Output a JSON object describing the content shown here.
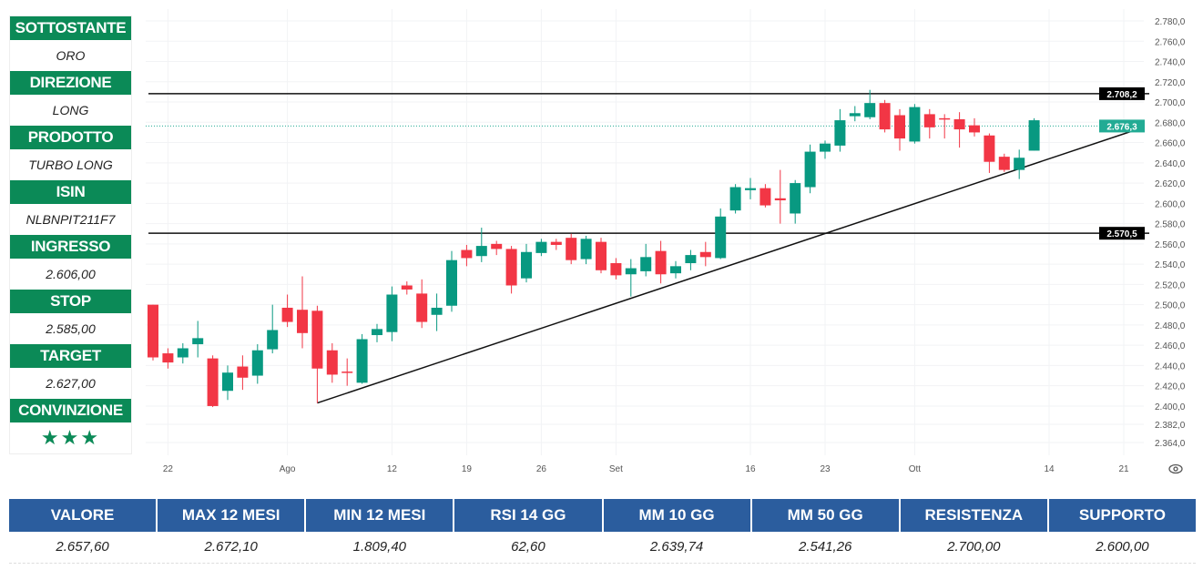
{
  "panel": [
    {
      "label": "SOTTOSTANTE",
      "value": "ORO"
    },
    {
      "label": "DIREZIONE",
      "value": "LONG"
    },
    {
      "label": "PRODOTTO",
      "value": "TURBO LONG"
    },
    {
      "label": "ISIN",
      "value": "NLBNPIT211F7"
    },
    {
      "label": "INGRESSO",
      "value": "2.606,00"
    },
    {
      "label": "STOP",
      "value": "2.585,00"
    },
    {
      "label": "TARGET",
      "value": "2.627,00"
    },
    {
      "label": "CONVINZIONE",
      "value": "★★★"
    }
  ],
  "table": {
    "headers": [
      "VALORE",
      "MAX 12 MESI",
      "MIN 12 MESI",
      "RSI 14 GG",
      "MM 10 GG",
      "MM 50 GG",
      "RESISTENZA",
      "SUPPORTO"
    ],
    "values": [
      "2.657,60",
      "2.672,10",
      "1.809,40",
      "62,60",
      "2.639,74",
      "2.541,26",
      "2.700,00",
      "2.600,00"
    ]
  },
  "chart_data": {
    "type": "candlestick",
    "colors": {
      "up": "#089981",
      "down": "#f23645",
      "line": "#111111",
      "last": "#22ab94"
    },
    "ylim": [
      2364,
      2780
    ],
    "yticks": [
      2780,
      2760,
      2740,
      2720,
      2700,
      2680,
      2660,
      2640,
      2620,
      2600,
      2580,
      2560,
      2540,
      2520,
      2500,
      2480,
      2460,
      2440,
      2420,
      2400,
      2382,
      2364
    ],
    "ytick_labels": [
      "2.780,0",
      "2.760,0",
      "2.740,0",
      "2.720,0",
      "2.700,0",
      "2.680,0",
      "2.660,0",
      "2.640,0",
      "2.620,0",
      "2.600,0",
      "2.580,0",
      "2.560,0",
      "2.540,0",
      "2.520,0",
      "2.500,0",
      "2.480,0",
      "2.460,0",
      "2.440,0",
      "2.420,0",
      "2.400,0",
      "2.382,0",
      "2.364,0"
    ],
    "xticks": [
      {
        "i": 2,
        "label": "22"
      },
      {
        "i": 10,
        "label": "Ago"
      },
      {
        "i": 17,
        "label": "12"
      },
      {
        "i": 22,
        "label": "19"
      },
      {
        "i": 27,
        "label": "26"
      },
      {
        "i": 32,
        "label": "Set"
      },
      {
        "i": 41,
        "label": "16"
      },
      {
        "i": 46,
        "label": "23"
      },
      {
        "i": 52,
        "label": "Ott"
      },
      {
        "i": 61,
        "label": "14"
      },
      {
        "i": 66,
        "label": "21"
      }
    ],
    "ohlc": [
      [
        2500,
        2500,
        2445,
        2448
      ],
      [
        2452,
        2457,
        2437,
        2443
      ],
      [
        2448,
        2462,
        2442,
        2457
      ],
      [
        2461,
        2484,
        2448,
        2467
      ],
      [
        2447,
        2450,
        2399,
        2400
      ],
      [
        2415,
        2440,
        2406,
        2433
      ],
      [
        2439,
        2450,
        2416,
        2428
      ],
      [
        2430,
        2461,
        2422,
        2455
      ],
      [
        2456,
        2500,
        2452,
        2475
      ],
      [
        2497,
        2510,
        2478,
        2483
      ],
      [
        2495,
        2528,
        2457,
        2472
      ],
      [
        2494,
        2499,
        2403,
        2437
      ],
      [
        2455,
        2462,
        2423,
        2431
      ],
      [
        2434,
        2447,
        2420,
        2433
      ],
      [
        2423,
        2471,
        2422,
        2466
      ],
      [
        2470,
        2481,
        2463,
        2476
      ],
      [
        2473,
        2518,
        2464,
        2510
      ],
      [
        2519,
        2523,
        2510,
        2515
      ],
      [
        2511,
        2525,
        2477,
        2483
      ],
      [
        2490,
        2511,
        2474,
        2497
      ],
      [
        2499,
        2553,
        2493,
        2544
      ],
      [
        2554,
        2559,
        2538,
        2546
      ],
      [
        2548,
        2576,
        2542,
        2558
      ],
      [
        2560,
        2563,
        2549,
        2555
      ],
      [
        2555,
        2558,
        2511,
        2519
      ],
      [
        2526,
        2560,
        2522,
        2552
      ],
      [
        2551,
        2565,
        2548,
        2562
      ],
      [
        2562,
        2565,
        2554,
        2559
      ],
      [
        2566,
        2570,
        2540,
        2544
      ],
      [
        2545,
        2568,
        2540,
        2565
      ],
      [
        2562,
        2566,
        2531,
        2534
      ],
      [
        2541,
        2546,
        2525,
        2529
      ],
      [
        2530,
        2545,
        2508,
        2536
      ],
      [
        2533,
        2560,
        2528,
        2547
      ],
      [
        2553,
        2563,
        2521,
        2530
      ],
      [
        2531,
        2543,
        2526,
        2538
      ],
      [
        2541,
        2554,
        2534,
        2549
      ],
      [
        2552,
        2562,
        2538,
        2547
      ],
      [
        2546,
        2595,
        2545,
        2587
      ],
      [
        2593,
        2619,
        2590,
        2616
      ],
      [
        2613,
        2625,
        2604,
        2615
      ],
      [
        2615,
        2619,
        2596,
        2598
      ],
      [
        2605,
        2633,
        2580,
        2603
      ],
      [
        2590,
        2623,
        2580,
        2620
      ],
      [
        2616,
        2658,
        2610,
        2651
      ],
      [
        2651,
        2662,
        2644,
        2659
      ],
      [
        2657,
        2693,
        2651,
        2682
      ],
      [
        2686,
        2696,
        2681,
        2689
      ],
      [
        2685,
        2712,
        2683,
        2699
      ],
      [
        2699,
        2702,
        2670,
        2673
      ],
      [
        2687,
        2693,
        2652,
        2664
      ],
      [
        2661,
        2698,
        2659,
        2695
      ],
      [
        2688,
        2693,
        2664,
        2675
      ],
      [
        2684,
        2688,
        2664,
        2683
      ],
      [
        2683,
        2690,
        2655,
        2673
      ],
      [
        2677,
        2684,
        2666,
        2670
      ],
      [
        2667,
        2669,
        2630,
        2641
      ],
      [
        2646,
        2649,
        2631,
        2633
      ],
      [
        2633,
        2653,
        2624,
        2645
      ],
      [
        2652,
        2684,
        2652,
        2682
      ]
    ],
    "hlines": [
      {
        "value": 2708.2,
        "label": "2.708,2"
      },
      {
        "value": 2570.5,
        "label": "2.570,5"
      }
    ],
    "last_price": {
      "value": 2676.3,
      "label": "2.676,3"
    },
    "trendline": {
      "from": {
        "i": 12,
        "price": 2403
      },
      "to": {
        "i": 67.1,
        "price": 2674
      }
    }
  }
}
